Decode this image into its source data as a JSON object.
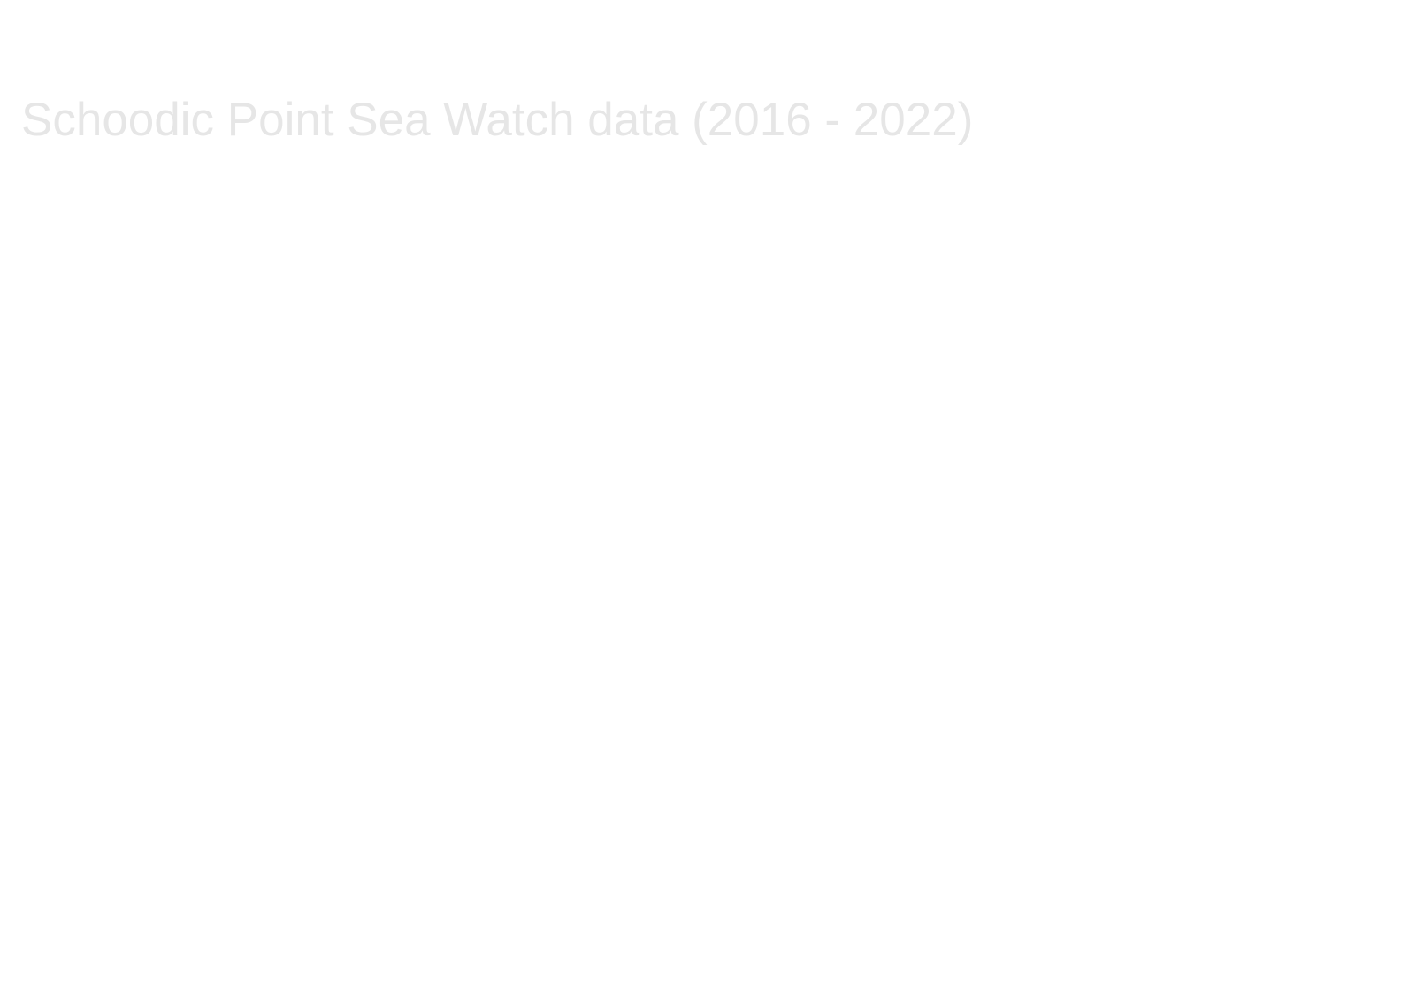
{
  "page": {
    "title": "Schoodic Point Sea Watch data (2016 - 2022)"
  },
  "colors": {
    "background": "#ffffff",
    "title_text": "#e6e6e6"
  }
}
